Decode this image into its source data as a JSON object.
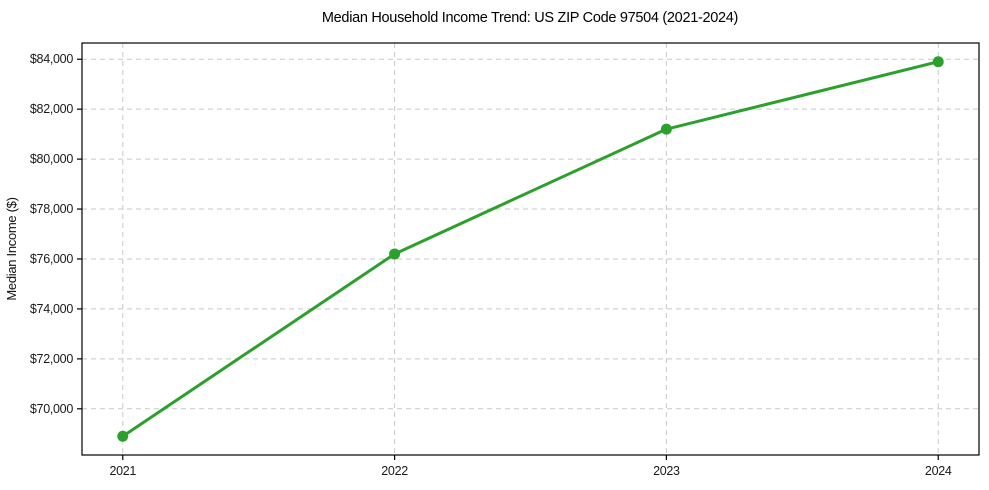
{
  "chart_data": {
    "type": "line",
    "title": "Median Household Income Trend: US ZIP Code 97504 (2021-2024)",
    "xlabel": "",
    "ylabel": "Median Income ($)",
    "x": [
      2021,
      2022,
      2023,
      2024
    ],
    "categories": [
      "2021",
      "2022",
      "2023",
      "2024"
    ],
    "values": [
      68900,
      76200,
      81200,
      83900
    ],
    "xlim": [
      2020.85,
      2024.15
    ],
    "ylim": [
      68150,
      84650
    ],
    "y_ticks": [
      70000,
      72000,
      74000,
      76000,
      78000,
      80000,
      82000,
      84000
    ],
    "y_tick_labels": [
      "$70,000",
      "$72,000",
      "$74,000",
      "$76,000",
      "$78,000",
      "$80,000",
      "$82,000",
      "$84,000"
    ],
    "grid": true,
    "grid_style": "dashed",
    "legend": false,
    "marker": "circle",
    "colors": {
      "line": "#2ca02c",
      "marker": "#2ca02c",
      "grid": "#c9c9c9",
      "spine": "#000000",
      "background": "#ffffff",
      "text": "#1a1a1a"
    }
  }
}
